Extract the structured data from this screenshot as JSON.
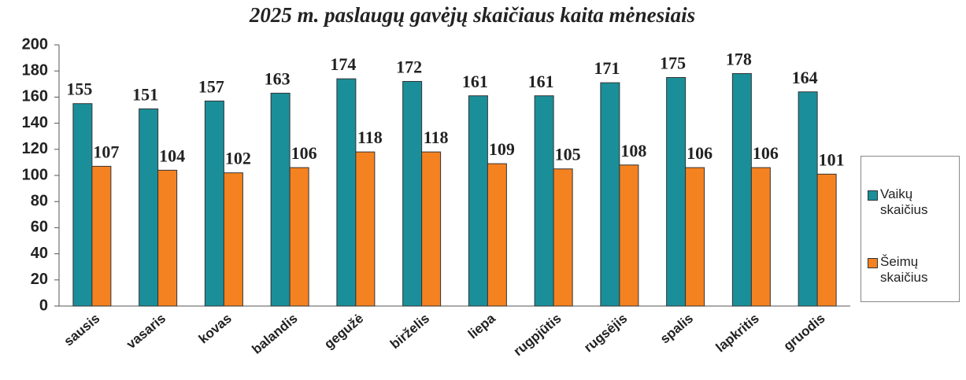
{
  "chart_data": {
    "type": "bar",
    "title": "2025 m. paslaugų gavėjų skaičiaus kaita mėnesiais",
    "categories": [
      "sausis",
      "vasaris",
      "kovas",
      "balandis",
      "gegužė",
      "birželis",
      "liepa",
      "rugpjūtis",
      "rugsėjis",
      "spalis",
      "lapkritis",
      "gruodis"
    ],
    "series": [
      {
        "name": "Vaikų skaičius",
        "color": "#1a8f9a",
        "values": [
          155,
          151,
          157,
          163,
          174,
          172,
          161,
          161,
          171,
          175,
          178,
          164
        ]
      },
      {
        "name": "Šeimų skaičius",
        "color": "#f58220",
        "values": [
          107,
          104,
          102,
          106,
          118,
          118,
          109,
          105,
          108,
          106,
          106,
          101
        ]
      }
    ],
    "ylim": [
      0,
      200
    ],
    "yticks": [
      0,
      20,
      40,
      60,
      80,
      100,
      120,
      140,
      160,
      180,
      200
    ],
    "grid": false,
    "legend": "right"
  }
}
